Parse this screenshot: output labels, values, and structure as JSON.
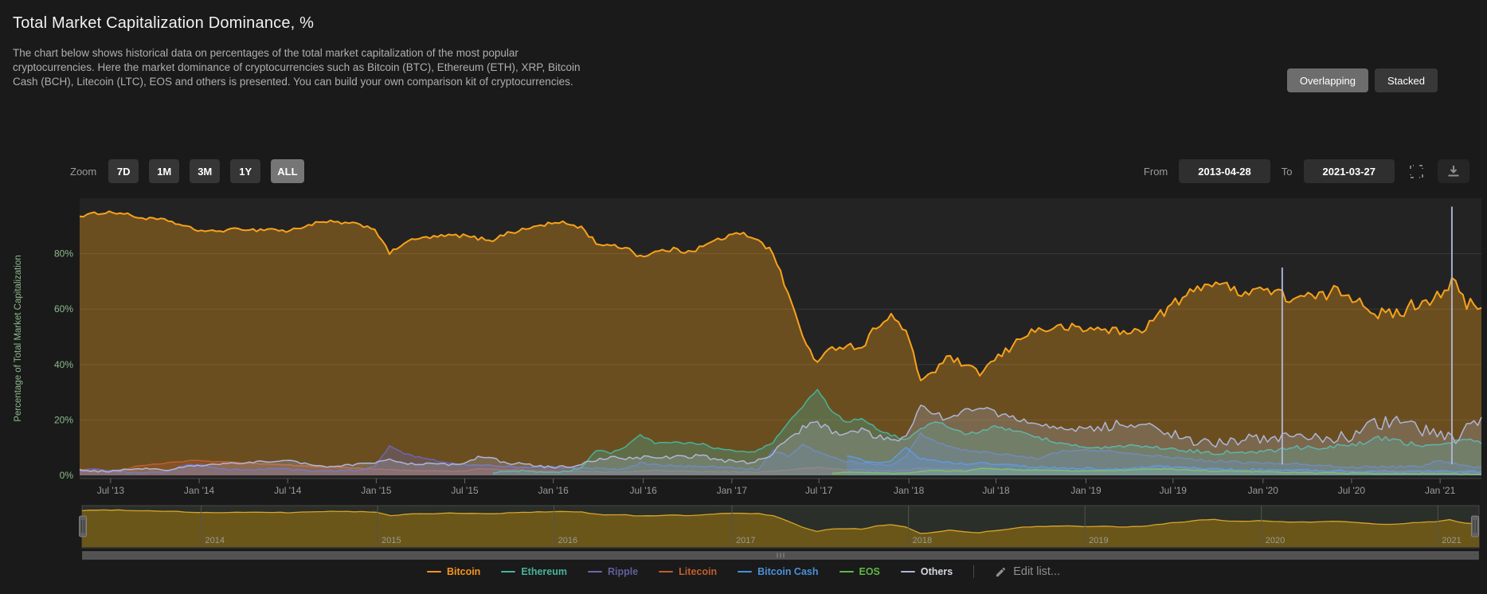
{
  "page": {
    "title": "Total Market Capitalization Dominance, %",
    "description": "The chart below shows historical data on percentages of the total market capitalization of the most popular cryptocurrencies. Here the market dominance of cryptocurrencies such as Bitcoin (BTC), Ethereum (ETH), XRP, Bitcoin Cash (BCH), Litecoin (LTC), EOS and others is presented. You can build your own comparison kit of cryptocurrencies."
  },
  "view_toggle": {
    "overlapping_label": "Overlapping",
    "stacked_label": "Stacked",
    "active": "Overlapping"
  },
  "controls": {
    "zoom_label": "Zoom",
    "zoom_buttons": [
      {
        "label": "7D",
        "active": false
      },
      {
        "label": "1M",
        "active": false
      },
      {
        "label": "3M",
        "active": false
      },
      {
        "label": "1Y",
        "active": false
      },
      {
        "label": "ALL",
        "active": true
      }
    ],
    "from_label": "From",
    "from_value": "2013-04-28",
    "to_label": "To",
    "to_value": "2021-03-27",
    "icons": {
      "fullscreen": "fullscreen",
      "download": "download"
    }
  },
  "chart_data": {
    "type": "area",
    "mode": "overlapping",
    "title": "Total Market Capitalization Dominance, %",
    "ylabel": "Percentage of Total Market Capitalization",
    "ylim": [
      0,
      100
    ],
    "grid": "horizontal",
    "y_ticks": [
      {
        "label": "0%",
        "value": 0
      },
      {
        "label": "20%",
        "value": 20
      },
      {
        "label": "40%",
        "value": 40
      },
      {
        "label": "60%",
        "value": 60
      },
      {
        "label": "80%",
        "value": 80
      }
    ],
    "x_start": "2013-04-28",
    "x_end": "2021-03-27",
    "x_unit": "months since 2013-04-28, monthly values",
    "x_ticks": [
      {
        "label": "Jul '13",
        "m": 2.1
      },
      {
        "label": "Jan '14",
        "m": 8.1
      },
      {
        "label": "Jul '14",
        "m": 14.1
      },
      {
        "label": "Jan '15",
        "m": 20.1
      },
      {
        "label": "Jul '15",
        "m": 26.1
      },
      {
        "label": "Jan '16",
        "m": 32.1
      },
      {
        "label": "Jul '16",
        "m": 38.2
      },
      {
        "label": "Jan '17",
        "m": 44.2
      },
      {
        "label": "Jul '17",
        "m": 50.1
      },
      {
        "label": "Jan '18",
        "m": 56.2
      },
      {
        "label": "Jul '18",
        "m": 62.1
      },
      {
        "label": "Jan '19",
        "m": 68.2
      },
      {
        "label": "Jul '19",
        "m": 74.1
      },
      {
        "label": "Jan '20",
        "m": 80.2
      },
      {
        "label": "Jul '20",
        "m": 86.2
      },
      {
        "label": "Jan '21",
        "m": 92.2
      }
    ],
    "series": [
      {
        "name": "Bitcoin",
        "color": "#f7a21b",
        "values": [
          93.5,
          94.5,
          95,
          94.5,
          93,
          92.5,
          92,
          90,
          88.5,
          88,
          88.5,
          89,
          88.5,
          89,
          88,
          89.5,
          91,
          91.5,
          91,
          90.5,
          89,
          80,
          84,
          85.5,
          86,
          86.5,
          86.5,
          85.5,
          85,
          87.5,
          88.5,
          90,
          91,
          91,
          89.5,
          84,
          82.5,
          82.5,
          79,
          80.5,
          81.5,
          81,
          82,
          84.5,
          86.5,
          87,
          85.5,
          80,
          66,
          50,
          40.5,
          46,
          47,
          46,
          54,
          57.5,
          52,
          34.5,
          38,
          43,
          39,
          37,
          41.5,
          45.5,
          51,
          52.5,
          53,
          53.5,
          52.5,
          53,
          52.5,
          51,
          53,
          57,
          61.5,
          64.5,
          68.5,
          70,
          67,
          66.5,
          67.5,
          66,
          64,
          64.5,
          64,
          66.5,
          65.5,
          62.5,
          58.5,
          57.5,
          60.5,
          63,
          65,
          70,
          61.5,
          60.5
        ]
      },
      {
        "name": "Ethereum",
        "color": "#47b39b",
        "values": [
          0,
          0,
          0,
          0,
          0,
          0,
          0,
          0,
          0,
          0,
          0,
          0,
          0,
          0,
          0,
          0,
          0,
          0,
          0,
          0,
          0,
          0,
          0,
          0,
          0,
          0,
          0,
          0,
          0.8,
          1.4,
          1.6,
          1.2,
          1,
          1.5,
          2.5,
          9,
          8,
          10.5,
          14.5,
          11.5,
          12,
          11.5,
          11.5,
          10,
          9,
          8.5,
          9,
          12,
          19,
          25,
          31,
          23,
          19,
          21,
          17,
          14.5,
          13,
          17,
          19.5,
          17.5,
          15,
          15.5,
          17.5,
          16.5,
          15,
          13.5,
          12.5,
          11,
          10.5,
          10,
          10,
          10.5,
          10.5,
          10,
          9.5,
          9,
          8.5,
          8,
          8.5,
          8.5,
          8.5,
          9,
          10,
          10,
          10,
          10.5,
          11,
          11.5,
          13.5,
          13,
          11.5,
          11,
          11,
          12,
          13,
          11.5
        ]
      },
      {
        "name": "Ripple",
        "color": "#6b66b3",
        "values": [
          1.5,
          2.5,
          1.8,
          1.2,
          1,
          1,
          1.5,
          3.5,
          4,
          2.8,
          2,
          2.2,
          2,
          2.5,
          2.2,
          1.8,
          1.5,
          1.5,
          1.8,
          2,
          3,
          10.5,
          8,
          6.5,
          5.5,
          4.5,
          4,
          3.8,
          3.5,
          3.2,
          3,
          3,
          3,
          2.8,
          2.5,
          2.5,
          2.3,
          2.2,
          4.5,
          3.8,
          3.5,
          3.3,
          3.2,
          3,
          2.8,
          2.5,
          2.3,
          9,
          7,
          11,
          8.5,
          6.5,
          5,
          4.5,
          4,
          3.8,
          7,
          15,
          12,
          10.5,
          9,
          8.5,
          8,
          7.5,
          6.5,
          6,
          8,
          9,
          9,
          9,
          8.5,
          8,
          7.5,
          7,
          6.5,
          6,
          5.5,
          5,
          5,
          4.5,
          4.5,
          4.5,
          4.2,
          3.8,
          3.5,
          3.2,
          3,
          3,
          3,
          3.2,
          3,
          3.5,
          5,
          4.5,
          3.5,
          3
        ]
      },
      {
        "name": "Litecoin",
        "color": "#bf5e2e",
        "values": [
          2.2,
          2,
          1.8,
          2,
          3.5,
          4,
          4.5,
          5,
          5.5,
          5,
          4.8,
          4.5,
          4.2,
          4,
          3.8,
          3.5,
          3.2,
          3,
          2.8,
          2.5,
          2.2,
          2,
          1.8,
          1.7,
          1.6,
          1.5,
          1.5,
          2.5,
          2.2,
          2,
          1.8,
          1.6,
          1.5,
          1.4,
          1.3,
          1.3,
          1.2,
          1.2,
          1.5,
          1.8,
          1.6,
          1.5,
          1.4,
          1.3,
          1.2,
          1.2,
          1.1,
          1.5,
          2,
          2.5,
          2.8,
          2.3,
          2,
          2,
          1.8,
          1.6,
          1.8,
          2.5,
          2.3,
          2.2,
          2.1,
          2,
          2.2,
          2,
          1.8,
          1.7,
          1.6,
          1.5,
          1.5,
          1.6,
          1.7,
          1.8,
          2.2,
          2.5,
          2.8,
          2.5,
          2.2,
          2,
          1.9,
          1.8,
          1.7,
          1.8,
          1.7,
          1.6,
          1.5,
          1.5,
          1.4,
          1.4,
          1.5,
          1.6,
          1.5,
          1.4,
          1.3,
          1.4,
          1.3,
          1.2
        ]
      },
      {
        "name": "Bitcoin Cash",
        "color": "#4a90d9",
        "values": [
          0,
          0,
          0,
          0,
          0,
          0,
          0,
          0,
          0,
          0,
          0,
          0,
          0,
          0,
          0,
          0,
          0,
          0,
          0,
          0,
          0,
          0,
          0,
          0,
          0,
          0,
          0,
          0,
          0,
          0,
          0,
          0,
          0,
          0,
          0,
          0,
          0,
          0,
          0,
          0,
          0,
          0,
          0,
          0,
          0,
          0,
          0,
          0,
          0,
          0,
          0,
          0,
          7,
          5.5,
          4.5,
          5.5,
          10,
          6,
          5.5,
          4.5,
          4.2,
          4.5,
          4.2,
          3.8,
          3.2,
          3,
          2.8,
          2.5,
          2.5,
          2.4,
          2.3,
          2.5,
          2.8,
          3.5,
          3,
          2.8,
          2.5,
          2.2,
          2.1,
          2,
          2,
          1.9,
          1.9,
          1.8,
          1.7,
          1.6,
          1.5,
          1.5,
          1.4,
          1.4,
          1.3,
          1.3,
          1.4,
          1.5,
          1.4,
          1.3
        ]
      },
      {
        "name": "EOS",
        "color": "#6fbf4f",
        "values": [
          0,
          0,
          0,
          0,
          0,
          0,
          0,
          0,
          0,
          0,
          0,
          0,
          0,
          0,
          0,
          0,
          0,
          0,
          0,
          0,
          0,
          0,
          0,
          0,
          0,
          0,
          0,
          0,
          0,
          0,
          0,
          0,
          0,
          0,
          0,
          0,
          0,
          0,
          0,
          0,
          0,
          0,
          0,
          0,
          0,
          0,
          0,
          0,
          0,
          0,
          0,
          0.8,
          1.2,
          1,
          0.9,
          0.8,
          0.7,
          1.5,
          1.8,
          1.6,
          1.5,
          2.5,
          2.3,
          2.2,
          2,
          1.9,
          1.8,
          1.7,
          1.6,
          1.7,
          1.8,
          1.9,
          2.2,
          2.4,
          2.2,
          2,
          1.8,
          1.6,
          1.5,
          1.4,
          1.3,
          1.2,
          1.1,
          1,
          0.9,
          0.9,
          0.8,
          0.8,
          0.7,
          0.7,
          0.6,
          0.6,
          0.5,
          0.5,
          0.4,
          0.4
        ]
      },
      {
        "name": "Others",
        "color": "#aeb6d8",
        "values": [
          2,
          1.5,
          1.5,
          2,
          2.5,
          2.5,
          2,
          3,
          3.5,
          4,
          4.5,
          4.5,
          5,
          4.5,
          5.5,
          4.5,
          3.5,
          3.2,
          3.5,
          4,
          4.5,
          5.5,
          4.5,
          4.2,
          4,
          4,
          4.2,
          6.5,
          6,
          4.5,
          4,
          3.5,
          3,
          3,
          4,
          5.5,
          6.5,
          6,
          6.5,
          7,
          6.5,
          7,
          6.8,
          6,
          5,
          4.5,
          5,
          8,
          13,
          17,
          19,
          16,
          15,
          16,
          14,
          13,
          14,
          25,
          22,
          20,
          24,
          25,
          22,
          21,
          19,
          18,
          17.5,
          17,
          17,
          17,
          18,
          19,
          18,
          16,
          15,
          13.5,
          12,
          11.5,
          12.5,
          13,
          12.5,
          13,
          14,
          13.5,
          14,
          13,
          14,
          16,
          19,
          19.5,
          18,
          16,
          14,
          12.5,
          17,
          21
        ]
      }
    ],
    "anomaly_spikes": [
      {
        "series": "Others",
        "m": 81.5,
        "peak": 75
      },
      {
        "series": "Others",
        "m": 93.0,
        "peak": 97
      }
    ],
    "navigator": {
      "series": "Bitcoin",
      "year_labels": [
        {
          "label": "2014",
          "m": 8.1
        },
        {
          "label": "2015",
          "m": 20.1
        },
        {
          "label": "2016",
          "m": 32.1
        },
        {
          "label": "2017",
          "m": 44.2
        },
        {
          "label": "2018",
          "m": 56.2
        },
        {
          "label": "2019",
          "m": 68.2
        },
        {
          "label": "2020",
          "m": 80.2
        },
        {
          "label": "2021",
          "m": 92.2
        }
      ]
    },
    "colors": {
      "plot_background": "#232323",
      "page_background": "#1a1a1a",
      "gridline": "#3a3a3a",
      "axis_text": "#9b9b9b",
      "y_axis_text": "#8cbb8c",
      "navigator_fill": "#6b561a",
      "navigator_line": "#d7a42a",
      "navigator_background": "#2b2f29"
    }
  },
  "legend": {
    "items": [
      {
        "label": "Bitcoin",
        "color": "#f7941d",
        "text_color": "#f7941d"
      },
      {
        "label": "Ethereum",
        "color": "#47b39b",
        "text_color": "#47b39b"
      },
      {
        "label": "Ripple",
        "color": "#6b66b3",
        "text_color": "#625e9e"
      },
      {
        "label": "Litecoin",
        "color": "#bf5e2e",
        "text_color": "#bf5e2e"
      },
      {
        "label": "Bitcoin Cash",
        "color": "#4a90d9",
        "text_color": "#4a90d9"
      },
      {
        "label": "EOS",
        "color": "#5fb845",
        "text_color": "#5fb845"
      },
      {
        "label": "Others",
        "color": "#aeb6d8",
        "text_color": "#d5d8e2"
      }
    ],
    "edit_label": "Edit list...",
    "edit_icon": "pencil"
  }
}
